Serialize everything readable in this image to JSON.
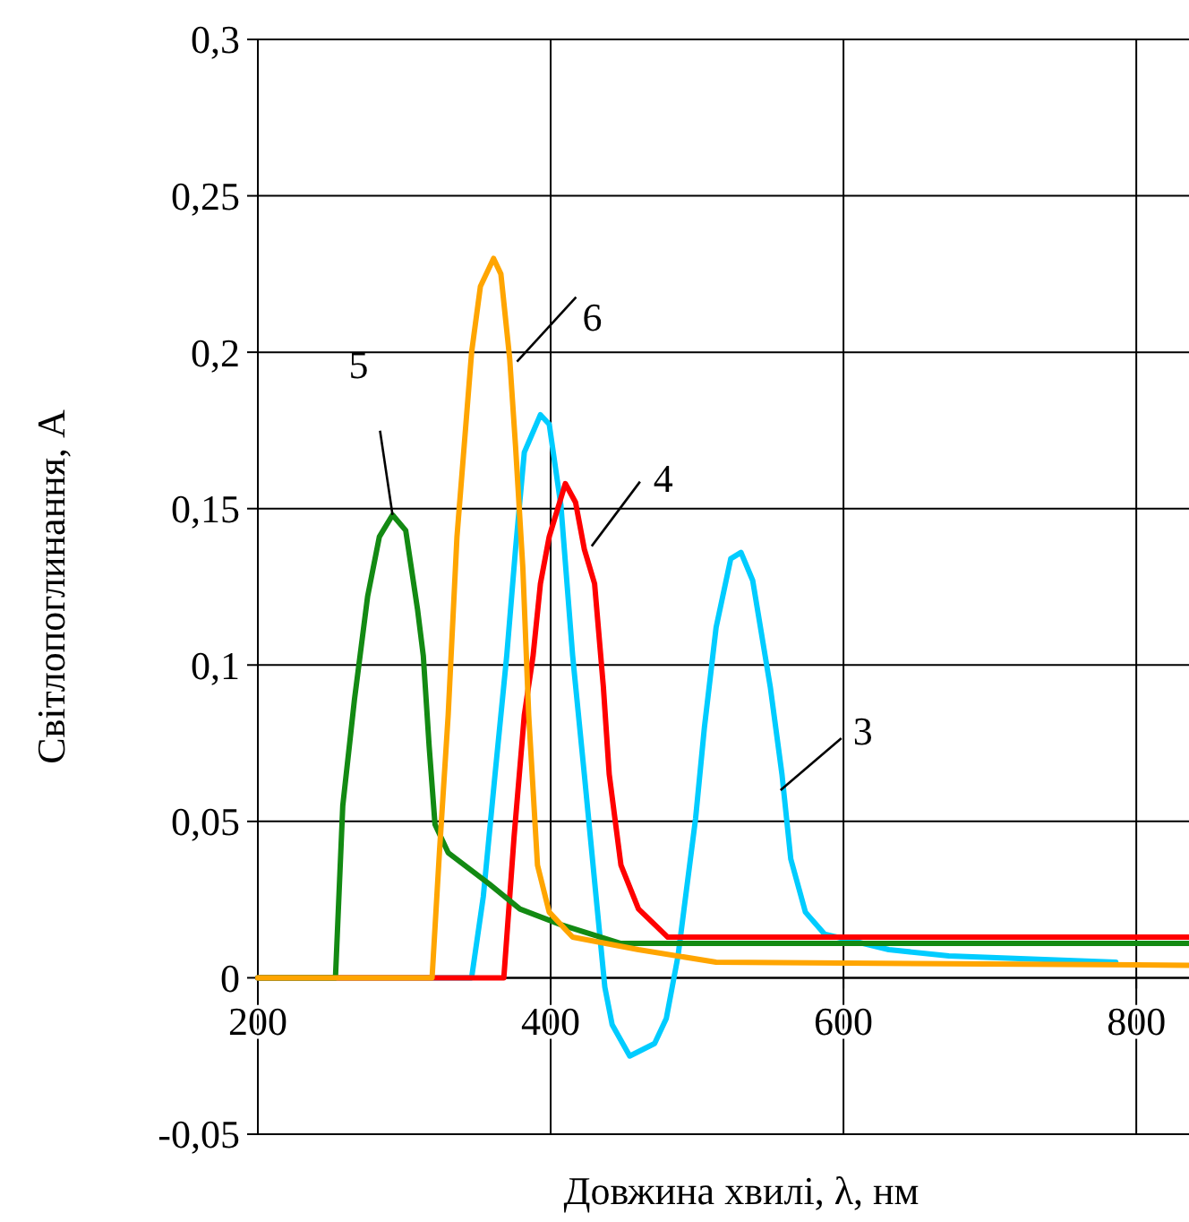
{
  "chart_data": {
    "type": "line",
    "xlabel": "Довжина хвилі, λ, нм",
    "ylabel": "Світлопоглинання, A",
    "xlim": [
      200,
      836
    ],
    "ylim": [
      -0.05,
      0.3
    ],
    "xticks": [
      200,
      400,
      600,
      800
    ],
    "yticks": [
      {
        "value": -0.05,
        "label": "-0,05"
      },
      0,
      {
        "value": 0.05,
        "label": "0,05"
      },
      {
        "value": 0.1,
        "label": "0,1"
      },
      {
        "value": 0.15,
        "label": "0,15"
      },
      {
        "value": 0.2,
        "label": "0,2"
      },
      {
        "value": 0.25,
        "label": "0,25"
      },
      {
        "value": 0.3,
        "label": "0,3"
      }
    ],
    "grid": true,
    "marker": "none",
    "line_style": "solid",
    "series": [
      {
        "color": "#00ccff",
        "x": [
          200,
          346,
          354,
          362,
          370,
          376,
          382,
          393,
          399,
          407,
          415,
          423,
          431,
          437,
          442,
          454,
          471,
          479,
          487,
          499,
          505,
          513,
          523,
          530,
          538,
          550,
          558,
          564,
          574,
          587,
          631,
          672,
          786
        ],
        "values": [
          0,
          0,
          0.026,
          0.065,
          0.103,
          0.137,
          0.168,
          0.18,
          0.177,
          0.151,
          0.103,
          0.065,
          0.026,
          -0.003,
          -0.015,
          -0.025,
          -0.021,
          -0.013,
          0.007,
          0.051,
          0.08,
          0.112,
          0.134,
          0.136,
          0.127,
          0.093,
          0.065,
          0.038,
          0.021,
          0.014,
          0.009,
          0.007,
          0.005
        ]
      },
      {
        "color": "#ff0000",
        "x": [
          200,
          368,
          375,
          382,
          388,
          393,
          399,
          410,
          417,
          423,
          430,
          436,
          440,
          448,
          460,
          480,
          836
        ],
        "values": [
          0,
          0,
          0.045,
          0.084,
          0.103,
          0.126,
          0.141,
          0.158,
          0.152,
          0.137,
          0.126,
          0.093,
          0.065,
          0.036,
          0.022,
          0.013,
          0.013
        ]
      },
      {
        "color": "#138a13",
        "x": [
          200,
          250,
          253,
          258,
          266,
          275,
          283,
          292,
          301,
          309,
          313,
          317,
          321,
          330,
          358,
          379,
          407,
          448,
          836
        ],
        "values": [
          0,
          0,
          0,
          0.055,
          0.089,
          0.122,
          0.141,
          0.148,
          0.143,
          0.118,
          0.103,
          0.074,
          0.049,
          0.04,
          0.03,
          0.022,
          0.017,
          0.011,
          0.011
        ]
      },
      {
        "color": "#ffa500",
        "x": [
          200,
          319,
          324,
          330,
          336,
          346,
          352,
          361,
          366,
          372,
          376,
          381,
          385,
          391,
          399,
          415,
          460,
          513,
          836
        ],
        "values": [
          0,
          0,
          0.04,
          0.084,
          0.141,
          0.2,
          0.221,
          0.23,
          0.225,
          0.198,
          0.17,
          0.131,
          0.084,
          0.036,
          0.021,
          0.013,
          0.009,
          0.005,
          0.004
        ]
      }
    ],
    "annotations": [
      {
        "text": "5",
        "x": 292,
        "y": 0.148
      },
      {
        "text": "6",
        "x": 377,
        "y": 0.197
      },
      {
        "text": "4",
        "x": 428,
        "y": 0.138
      },
      {
        "text": "3",
        "x": 557,
        "y": 0.06
      }
    ]
  }
}
